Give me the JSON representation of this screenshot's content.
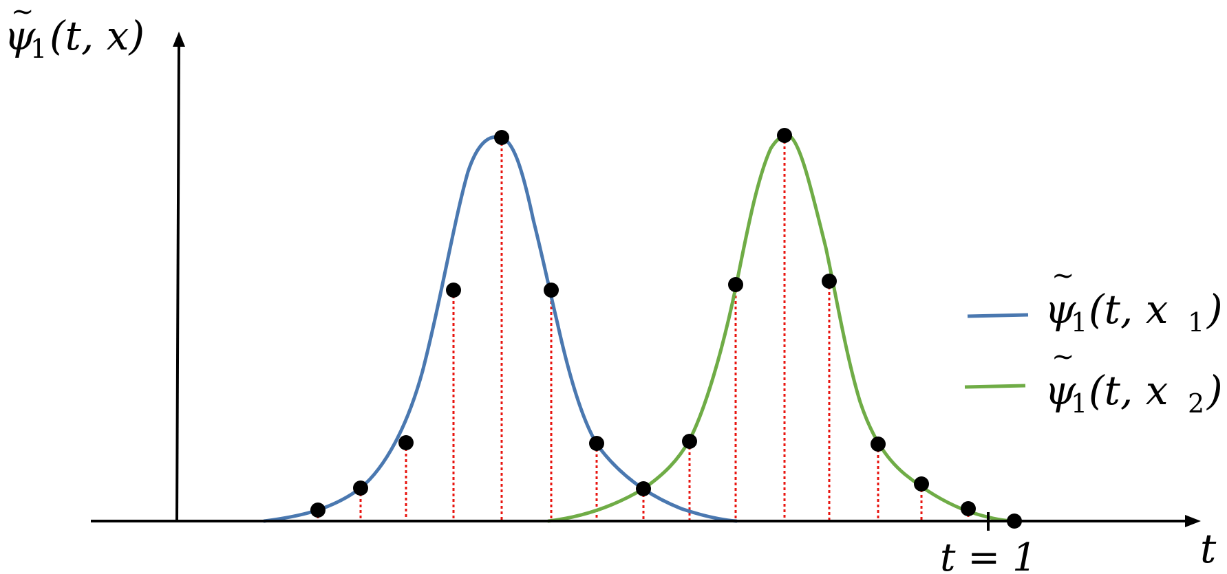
{
  "axes": {
    "y_label": {
      "tilde": "~",
      "base": "ψ",
      "sub": "1",
      "args": "(t, x)"
    },
    "x_label": "t",
    "tick_label": "t = 1"
  },
  "legend": [
    {
      "base": "ψ",
      "sub": "1",
      "args_head": "(t, x",
      "args_sub": "1",
      "args_tail": ")",
      "color": "#4a78b0"
    },
    {
      "base": "ψ",
      "sub": "1",
      "args_head": "(t, x",
      "args_sub": "2",
      "args_tail": ")",
      "color": "#6fac46"
    }
  ],
  "curves": [
    {
      "name": "blue-curve",
      "color": "#4a78b0",
      "sample_count": 8
    },
    {
      "name": "green-curve",
      "color": "#6fac46",
      "sample_count": 8
    }
  ],
  "colors": {
    "axis": "#000000",
    "sample_dot": "#000000",
    "sample_line": "#e8140f"
  }
}
